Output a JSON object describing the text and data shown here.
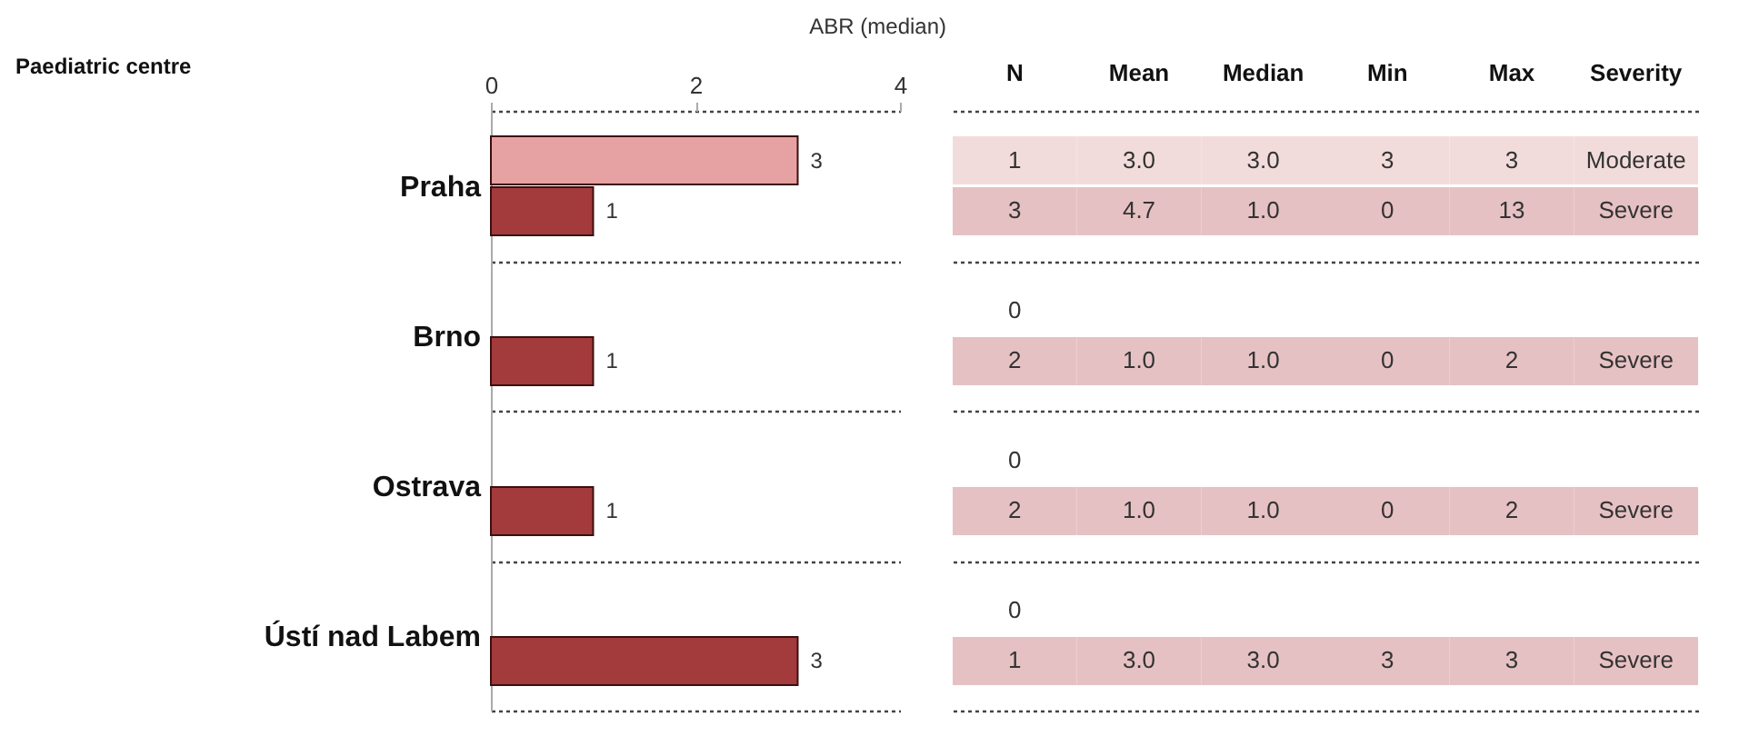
{
  "chart_data": [
    {
      "type": "bar",
      "orientation": "horizontal",
      "xlabel": "ABR (median)",
      "ylabel": "Paediatric centre",
      "categories": [
        "Praha",
        "Brno",
        "Ostrava",
        "Ústí nad Labem"
      ],
      "series": [
        {
          "color": "#e6a1a2",
          "values": [
            3,
            null,
            null,
            null
          ]
        },
        {
          "color": "#a33a3b",
          "values": [
            1,
            1,
            1,
            3
          ]
        }
      ],
      "xlim": [
        0,
        4
      ],
      "xticks": [
        0,
        2,
        4
      ],
      "data_labels": true,
      "grid": "y"
    },
    {
      "type": "heatmap",
      "categories": [
        "N",
        "Mean",
        "Median",
        "Min",
        "Max",
        "Severity"
      ],
      "y_categories": [
        null,
        null,
        null,
        null,
        null,
        null,
        null,
        null
      ],
      "cells": [
        [
          1,
          3.0,
          3.0,
          3,
          3,
          null
        ],
        [
          3,
          4.7,
          1.0,
          0,
          13,
          null
        ],
        [
          0,
          null,
          null,
          null,
          null,
          null
        ],
        [
          2,
          1.0,
          1.0,
          0,
          2,
          null
        ],
        [
          0,
          null,
          null,
          null,
          null,
          null
        ],
        [
          2,
          1.0,
          1.0,
          0,
          2,
          null
        ],
        [
          0,
          null,
          null,
          null,
          null,
          null
        ],
        [
          1,
          3.0,
          3.0,
          3,
          3,
          null
        ]
      ],
      "cell_labels": [
        [
          "1",
          "3.0",
          "3.0",
          "3",
          "3",
          "Moderate"
        ],
        [
          "3",
          "4.7",
          "1.0",
          "0",
          "13",
          "Severe"
        ],
        [
          "0",
          null,
          null,
          null,
          null,
          null
        ],
        [
          "2",
          "1.0",
          "1.0",
          "0",
          "2",
          "Severe"
        ],
        [
          "0",
          null,
          null,
          null,
          null,
          null
        ],
        [
          "2",
          "1.0",
          "1.0",
          "0",
          "2",
          "Severe"
        ],
        [
          "0",
          null,
          null,
          null,
          null,
          null
        ],
        [
          "1",
          "3.0",
          "3.0",
          "3",
          "3",
          "Severe"
        ]
      ]
    }
  ]
}
